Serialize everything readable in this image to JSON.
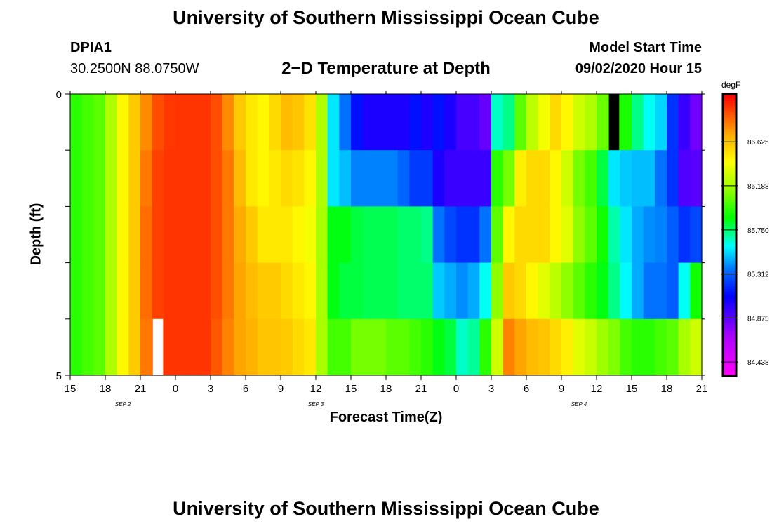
{
  "header": {
    "title": "University of Southern Mississippi Ocean Cube",
    "station_id": "DPIA1",
    "coords": "30.2500N 88.0750W",
    "subtitle": "2−D Temperature at Depth",
    "model_start_label": "Model Start Time",
    "model_start_value": "09/02/2020 Hour 15"
  },
  "footer": {
    "title": "University of Southern Mississippi Ocean Cube"
  },
  "chart_data": {
    "type": "heatmap",
    "title": "2-D Temperature at Depth",
    "xlabel": "Forecast Time(Z)",
    "ylabel": "Depth (ft)",
    "units": "degF",
    "y_ticks": [
      "0",
      "5"
    ],
    "ylim": [
      0,
      5
    ],
    "x_ticks": [
      "15",
      "18",
      "21",
      "0",
      "3",
      "6",
      "9",
      "12",
      "15",
      "18",
      "21",
      "0",
      "3",
      "6",
      "9",
      "12",
      "15",
      "18",
      "21"
    ],
    "date_labels": [
      {
        "text": "SEP 2",
        "tick_index": 1.5
      },
      {
        "text": "SEP 3",
        "tick_index": 7
      },
      {
        "text": "SEP 4",
        "tick_index": 14.5
      }
    ],
    "colorbar_ticks": [
      "86.625",
      "86.188",
      "85.750",
      "85.312",
      "84.875",
      "84.438"
    ],
    "colorbar_range": [
      84.3,
      87.1
    ],
    "markers": [
      {
        "color": "#000000",
        "time_index": 46,
        "rows": [
          0
        ]
      },
      {
        "color": "#ffffff",
        "time_index": 7,
        "rows": [
          4
        ]
      }
    ],
    "time_steps": 54,
    "depth_rows": 5,
    "grid_values": [
      [
        85.95,
        86.0,
        86.05,
        86.22,
        86.45,
        86.6,
        86.78,
        86.92,
        86.97,
        86.98,
        86.98,
        86.98,
        86.92,
        86.78,
        86.6,
        86.5,
        86.45,
        86.55,
        86.65,
        86.62,
        86.52,
        86.22,
        85.55,
        85.35,
        85.12,
        85.02,
        85.02,
        85.02,
        85.02,
        85.12,
        85.02,
        85.12,
        85.02,
        84.92,
        84.92,
        84.85,
        85.65,
        85.72,
        86.05,
        86.25,
        86.4,
        86.55,
        86.45,
        86.3,
        86.22,
        86.08,
        85.98,
        85.92,
        85.72,
        85.6,
        85.52,
        85.2,
        84.95,
        84.82
      ],
      [
        85.95,
        86.0,
        86.05,
        86.22,
        86.45,
        86.6,
        86.82,
        86.95,
        86.98,
        86.98,
        86.98,
        86.98,
        86.92,
        86.82,
        86.65,
        86.5,
        86.45,
        86.5,
        86.55,
        86.52,
        86.45,
        86.22,
        85.55,
        85.48,
        85.38,
        85.38,
        85.38,
        85.38,
        85.32,
        85.22,
        85.22,
        85.02,
        84.95,
        84.95,
        84.95,
        84.95,
        85.95,
        86.1,
        86.48,
        86.55,
        86.55,
        86.45,
        86.3,
        86.1,
        86.0,
        85.8,
        85.55,
        85.5,
        85.48,
        85.48,
        85.35,
        85.2,
        84.9,
        84.88
      ],
      [
        85.95,
        86.0,
        86.05,
        86.22,
        86.45,
        86.6,
        86.85,
        86.95,
        86.98,
        86.98,
        86.98,
        86.98,
        86.92,
        86.82,
        86.7,
        86.6,
        86.5,
        86.5,
        86.5,
        86.45,
        86.4,
        86.2,
        85.85,
        85.85,
        85.8,
        85.78,
        85.78,
        85.78,
        85.75,
        85.75,
        85.72,
        85.35,
        85.25,
        85.2,
        85.2,
        85.35,
        86.05,
        86.45,
        86.55,
        86.55,
        86.55,
        86.45,
        86.35,
        86.15,
        86.05,
        85.9,
        85.68,
        85.55,
        85.45,
        85.4,
        85.38,
        85.3,
        85.2,
        85.25
      ],
      [
        85.95,
        86.0,
        86.05,
        86.22,
        86.45,
        86.6,
        86.85,
        86.95,
        86.98,
        86.98,
        86.98,
        86.98,
        86.92,
        86.82,
        86.72,
        86.65,
        86.6,
        86.6,
        86.55,
        86.5,
        86.45,
        86.2,
        85.85,
        85.8,
        85.8,
        85.78,
        85.78,
        85.78,
        85.75,
        85.75,
        85.75,
        85.5,
        85.45,
        85.4,
        85.45,
        85.6,
        86.15,
        86.6,
        86.55,
        86.45,
        86.35,
        86.25,
        86.15,
        86.05,
        85.95,
        85.85,
        85.72,
        85.58,
        85.45,
        85.35,
        85.35,
        85.3,
        85.6,
        85.9
      ],
      [
        85.95,
        86.0,
        86.05,
        86.22,
        86.45,
        86.6,
        86.82,
        86.95,
        86.98,
        86.98,
        86.98,
        86.98,
        86.9,
        86.8,
        86.72,
        86.68,
        86.62,
        86.62,
        86.6,
        86.55,
        86.5,
        86.2,
        86.0,
        86.0,
        86.1,
        86.1,
        86.1,
        86.05,
        86.05,
        86.0,
        85.95,
        85.85,
        85.8,
        85.65,
        85.7,
        85.95,
        86.3,
        86.8,
        86.72,
        86.65,
        86.62,
        86.55,
        86.48,
        86.35,
        86.28,
        86.18,
        86.12,
        86.0,
        85.95,
        85.95,
        86.0,
        86.05,
        86.2,
        86.3
      ]
    ]
  }
}
